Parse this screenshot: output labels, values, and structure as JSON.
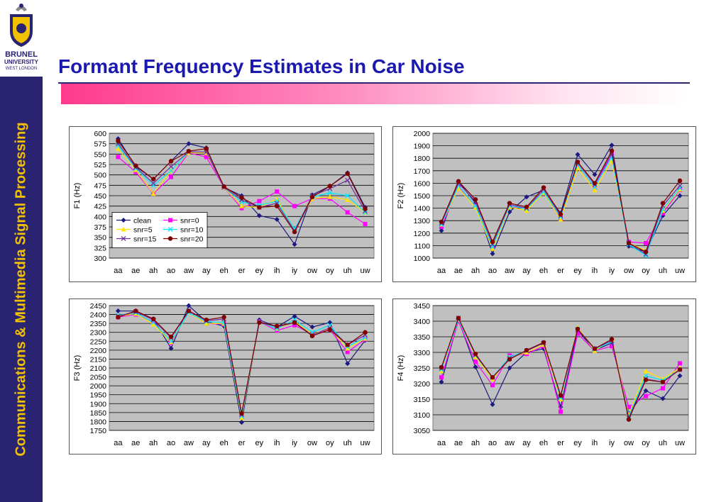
{
  "slide": {
    "title": "Formant Frequency Estimates in Car Noise",
    "sidebar_text": "Communications & Multimedia Signal Processing",
    "logo_line1": "BRUNEL",
    "logo_line2": "UNIVERSITY",
    "logo_line3": "WEST LONDON"
  },
  "colors": {
    "sidebar": "#2a2470",
    "sidebar_text": "#f2c200",
    "title": "#1a1ab0",
    "plot_bg": "#c0c0c0"
  },
  "chart_data": [
    {
      "type": "line",
      "ylabel": "F1  (Hz)",
      "categories": [
        "aa",
        "ae",
        "ah",
        "ao",
        "aw",
        "ay",
        "eh",
        "er",
        "ey",
        "ih",
        "iy",
        "ow",
        "oy",
        "uh",
        "uw"
      ],
      "ylim": [
        300,
        600
      ],
      "yticks": [
        300,
        325,
        350,
        375,
        400,
        425,
        450,
        475,
        500,
        525,
        550,
        575,
        600
      ],
      "grid": true,
      "legend": "inside-lower-left",
      "series": [
        {
          "name": "clean",
          "color": "#1a1a80",
          "marker": "diamond",
          "values": [
            587,
            520,
            490,
            533,
            575,
            565,
            470,
            450,
            402,
            393,
            333,
            452,
            473,
            505,
            422
          ]
        },
        {
          "name": "snr=0",
          "color": "#ff00ff",
          "marker": "square",
          "values": [
            543,
            507,
            455,
            495,
            553,
            543,
            470,
            420,
            437,
            460,
            425,
            443,
            443,
            410,
            382
          ]
        },
        {
          "name": "snr=5",
          "color": "#ffe400",
          "marker": "triangle",
          "values": [
            563,
            512,
            455,
            510,
            553,
            553,
            470,
            425,
            422,
            442,
            368,
            443,
            447,
            440,
            410
          ]
        },
        {
          "name": "snr=10",
          "color": "#00e8ff",
          "marker": "x",
          "values": [
            570,
            515,
            475,
            510,
            555,
            555,
            470,
            435,
            427,
            437,
            370,
            447,
            457,
            450,
            410
          ]
        },
        {
          "name": "snr=15",
          "color": "#7030a0",
          "marker": "x",
          "values": [
            575,
            518,
            480,
            520,
            555,
            555,
            470,
            440,
            422,
            432,
            365,
            450,
            467,
            487,
            413
          ]
        },
        {
          "name": "snr=20",
          "color": "#800000",
          "marker": "circle",
          "values": [
            582,
            522,
            490,
            533,
            557,
            563,
            472,
            445,
            422,
            425,
            363,
            447,
            473,
            503,
            418
          ]
        }
      ]
    },
    {
      "type": "line",
      "ylabel": "F2  (Hz)",
      "categories": [
        "aa",
        "ae",
        "ah",
        "ao",
        "aw",
        "ay",
        "eh",
        "er",
        "ey",
        "ih",
        "iy",
        "ow",
        "oy",
        "uh",
        "uw"
      ],
      "ylim": [
        1000,
        2000
      ],
      "yticks": [
        1000,
        1100,
        1200,
        1300,
        1400,
        1500,
        1600,
        1700,
        1800,
        1900,
        2000
      ],
      "grid": true,
      "series": [
        {
          "name": "clean",
          "color": "#1a1a80",
          "marker": "diamond",
          "values": [
            1220,
            1615,
            1440,
            1035,
            1370,
            1490,
            1545,
            1360,
            1830,
            1670,
            1905,
            1095,
            1050,
            1340,
            1500
          ]
        },
        {
          "name": "snr=0",
          "color": "#ff00ff",
          "marker": "square",
          "values": [
            1250,
            1575,
            1420,
            1080,
            1410,
            1400,
            1530,
            1320,
            1750,
            1570,
            1830,
            1130,
            1120,
            1360,
            1545
          ]
        },
        {
          "name": "snr=5",
          "color": "#ffe400",
          "marker": "triangle",
          "values": [
            1270,
            1560,
            1405,
            1075,
            1410,
            1380,
            1525,
            1310,
            1720,
            1545,
            1780,
            1120,
            1060,
            1380,
            1550
          ]
        },
        {
          "name": "snr=10",
          "color": "#00e8ff",
          "marker": "x",
          "values": [
            1270,
            1580,
            1420,
            1090,
            1420,
            1395,
            1530,
            1330,
            1750,
            1570,
            1810,
            1110,
            1020,
            1390,
            1560
          ]
        },
        {
          "name": "snr=15",
          "color": "#7030a0",
          "marker": "x",
          "values": [
            1280,
            1600,
            1455,
            1110,
            1430,
            1400,
            1550,
            1340,
            1765,
            1590,
            1840,
            1120,
            1030,
            1420,
            1580
          ]
        },
        {
          "name": "snr=20",
          "color": "#800000",
          "marker": "circle",
          "values": [
            1290,
            1615,
            1470,
            1130,
            1440,
            1410,
            1565,
            1350,
            1770,
            1600,
            1860,
            1120,
            1050,
            1440,
            1620
          ]
        }
      ]
    },
    {
      "type": "line",
      "ylabel": "F3  (Hz)",
      "categories": [
        "aa",
        "ae",
        "ah",
        "ao",
        "aw",
        "ay",
        "eh",
        "er",
        "ey",
        "ih",
        "iy",
        "ow",
        "oy",
        "uh",
        "uw"
      ],
      "ylim": [
        1750,
        2450
      ],
      "yticks": [
        1750,
        1800,
        1850,
        1900,
        1950,
        2000,
        2050,
        2100,
        2150,
        2200,
        2250,
        2300,
        2350,
        2400,
        2450
      ],
      "grid": true,
      "series": [
        {
          "name": "clean",
          "color": "#1a1a80",
          "marker": "diamond",
          "values": [
            2420,
            2420,
            2375,
            2210,
            2450,
            2360,
            2335,
            1795,
            2370,
            2330,
            2390,
            2330,
            2355,
            2125,
            2255
          ]
        },
        {
          "name": "snr=0",
          "color": "#ff00ff",
          "marker": "square",
          "values": [
            2385,
            2400,
            2360,
            2240,
            2415,
            2350,
            2345,
            1825,
            2360,
            2310,
            2340,
            2290,
            2315,
            2190,
            2260
          ]
        },
        {
          "name": "snr=5",
          "color": "#ffe400",
          "marker": "triangle",
          "values": [
            2390,
            2405,
            2345,
            2245,
            2410,
            2350,
            2350,
            1820,
            2360,
            2320,
            2360,
            2290,
            2320,
            2210,
            2265
          ]
        },
        {
          "name": "snr=10",
          "color": "#00e8ff",
          "marker": "x",
          "values": [
            2395,
            2410,
            2355,
            2250,
            2410,
            2360,
            2355,
            1830,
            2360,
            2320,
            2370,
            2300,
            2340,
            2220,
            2270
          ]
        },
        {
          "name": "snr=15",
          "color": "#7030a0",
          "marker": "x",
          "values": [
            2390,
            2415,
            2370,
            2270,
            2420,
            2365,
            2375,
            1840,
            2360,
            2330,
            2355,
            2285,
            2325,
            2230,
            2285
          ]
        },
        {
          "name": "snr=20",
          "color": "#800000",
          "marker": "circle",
          "values": [
            2385,
            2420,
            2375,
            2275,
            2420,
            2370,
            2385,
            1845,
            2355,
            2335,
            2355,
            2280,
            2315,
            2230,
            2300
          ]
        }
      ]
    },
    {
      "type": "line",
      "ylabel": "F4  (Hz)",
      "categories": [
        "aa",
        "ae",
        "ah",
        "ao",
        "aw",
        "ay",
        "eh",
        "er",
        "ey",
        "ih",
        "iy",
        "ow",
        "oy",
        "uh",
        "uw"
      ],
      "ylim": [
        3050,
        3450
      ],
      "yticks": [
        3050,
        3100,
        3150,
        3200,
        3250,
        3300,
        3350,
        3400,
        3450
      ],
      "grid": true,
      "series": [
        {
          "name": "clean",
          "color": "#1a1a80",
          "marker": "diamond",
          "values": [
            3205,
            3405,
            3253,
            3133,
            3250,
            3300,
            3312,
            3125,
            3370,
            3307,
            3330,
            3105,
            3177,
            3152,
            3225
          ]
        },
        {
          "name": "snr=0",
          "color": "#ff00ff",
          "marker": "square",
          "values": [
            3220,
            3400,
            3270,
            3195,
            3290,
            3295,
            3320,
            3110,
            3360,
            3305,
            3320,
            3125,
            3160,
            3185,
            3265
          ]
        },
        {
          "name": "snr=5",
          "color": "#ffe400",
          "marker": "triangle",
          "values": [
            3240,
            3405,
            3285,
            3215,
            3285,
            3300,
            3325,
            3150,
            3380,
            3305,
            3340,
            3100,
            3240,
            3215,
            3250
          ]
        },
        {
          "name": "snr=10",
          "color": "#00e8ff",
          "marker": "x",
          "values": [
            3245,
            3405,
            3290,
            3220,
            3285,
            3305,
            3330,
            3155,
            3375,
            3310,
            3335,
            3095,
            3225,
            3210,
            3245
          ]
        },
        {
          "name": "snr=15",
          "color": "#7030a0",
          "marker": "x",
          "values": [
            3250,
            3410,
            3292,
            3220,
            3280,
            3305,
            3330,
            3160,
            3372,
            3312,
            3338,
            3090,
            3215,
            3205,
            3245
          ]
        },
        {
          "name": "snr=20",
          "color": "#800000",
          "marker": "circle",
          "values": [
            3252,
            3410,
            3295,
            3220,
            3278,
            3307,
            3332,
            3162,
            3375,
            3312,
            3342,
            3085,
            3212,
            3205,
            3245
          ]
        }
      ]
    }
  ]
}
